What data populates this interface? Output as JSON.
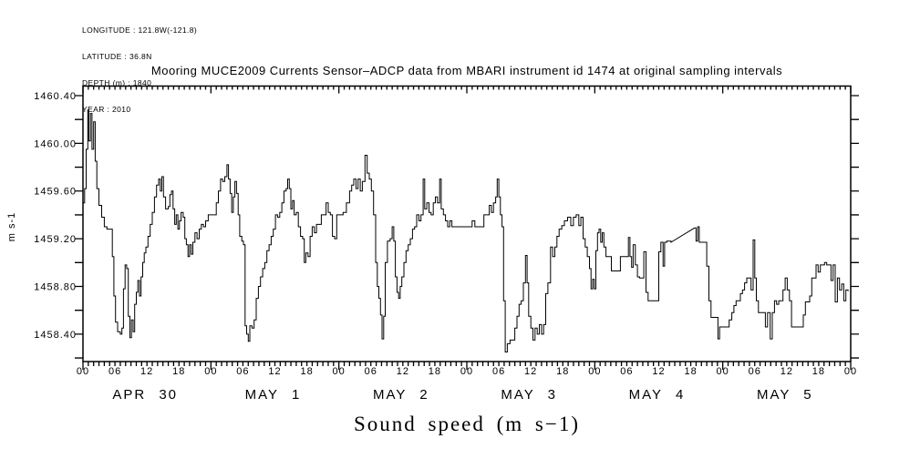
{
  "header_info": {
    "line1": "LONGITUDE : 121.8W(-121.8)",
    "line2": "LATITUDE : 36.8N",
    "line3": "DEPTH (m) : 1840",
    "line4": "YEAR : 2010"
  },
  "title": "Mooring MUCE2009 Currents Sensor–ADCP data from MBARI instrument id 1474 at original sampling intervals",
  "chart_data": {
    "type": "line",
    "title": "Mooring MUCE2009 Currents Sensor–ADCP data from MBARI instrument id 1474 at original sampling intervals",
    "xlabel": "Sound speed (m s−1)",
    "ylabel": "m s-1",
    "x_unit": "hours from 2010-04-30 00:00",
    "xlim_hours": [
      0,
      144
    ],
    "ylim": [
      1458.17,
      1460.48
    ],
    "y_tick_labels": [
      "1460.40",
      "1460.00",
      "1459.60",
      "1459.20",
      "1458.80",
      "1458.40"
    ],
    "y_tick_values": [
      1460.4,
      1460.0,
      1459.6,
      1459.2,
      1458.8,
      1458.4
    ],
    "y_minor_tick_step": 0.2,
    "x_hour_tick_labels": [
      "00",
      "06",
      "12",
      "18"
    ],
    "x_axis_end_label": "00",
    "x_day_labels": [
      "APR 30",
      "MAY 1",
      "MAY 2",
      "MAY 3",
      "MAY 4",
      "MAY 5"
    ],
    "grid": false,
    "legend": "none",
    "line_color": "#000000",
    "gap_hours_threshold": 2,
    "points": [
      [
        0,
        1459.5
      ],
      [
        0.3,
        1459.62
      ],
      [
        0.6,
        1459.95
      ],
      [
        0.9,
        1460.28
      ],
      [
        1.1,
        1460.02
      ],
      [
        1.4,
        1460.25
      ],
      [
        1.7,
        1459.95
      ],
      [
        2,
        1460.18
      ],
      [
        2.3,
        1459.85
      ],
      [
        2.6,
        1459.62
      ],
      [
        3,
        1459.48
      ],
      [
        3.5,
        1459.38
      ],
      [
        4,
        1459.3
      ],
      [
        4.5,
        1459.28
      ],
      [
        5.2,
        1459.28
      ],
      [
        5.5,
        1459.05
      ],
      [
        5.8,
        1458.72
      ],
      [
        6.1,
        1458.5
      ],
      [
        6.5,
        1458.42
      ],
      [
        7,
        1458.4
      ],
      [
        7.3,
        1458.45
      ],
      [
        7.6,
        1458.78
      ],
      [
        7.9,
        1458.98
      ],
      [
        8.2,
        1458.95
      ],
      [
        8.5,
        1458.55
      ],
      [
        8.8,
        1458.37
      ],
      [
        9.1,
        1458.52
      ],
      [
        9.4,
        1458.42
      ],
      [
        9.7,
        1458.65
      ],
      [
        10,
        1458.75
      ],
      [
        10.3,
        1458.85
      ],
      [
        10.6,
        1458.72
      ],
      [
        10.9,
        1458.88
      ],
      [
        11.2,
        1459
      ],
      [
        11.5,
        1459.08
      ],
      [
        11.8,
        1459.13
      ],
      [
        12.2,
        1459.22
      ],
      [
        12.6,
        1459.32
      ],
      [
        13,
        1459.42
      ],
      [
        13.4,
        1459.55
      ],
      [
        13.8,
        1459.65
      ],
      [
        14.2,
        1459.7
      ],
      [
        14.5,
        1459.6
      ],
      [
        14.8,
        1459.72
      ],
      [
        15.1,
        1459.55
      ],
      [
        15.5,
        1459.45
      ],
      [
        16,
        1459.47
      ],
      [
        16.3,
        1459.57
      ],
      [
        16.6,
        1459.6
      ],
      [
        16.9,
        1459.45
      ],
      [
        17.2,
        1459.32
      ],
      [
        17.5,
        1459.4
      ],
      [
        17.8,
        1459.28
      ],
      [
        18.1,
        1459.35
      ],
      [
        18.4,
        1459.42
      ],
      [
        18.8,
        1459.38
      ],
      [
        19.1,
        1459.2
      ],
      [
        19.4,
        1459.15
      ],
      [
        19.7,
        1459.05
      ],
      [
        20,
        1459.15
      ],
      [
        20.3,
        1459.07
      ],
      [
        20.6,
        1459.17
      ],
      [
        21,
        1459.25
      ],
      [
        21.4,
        1459.2
      ],
      [
        21.8,
        1459.28
      ],
      [
        22.2,
        1459.32
      ],
      [
        22.6,
        1459.3
      ],
      [
        23,
        1459.35
      ],
      [
        23.5,
        1459.4
      ],
      [
        24,
        1459.4
      ],
      [
        24.6,
        1459.4
      ],
      [
        25,
        1459.5
      ],
      [
        25.4,
        1459.6
      ],
      [
        25.8,
        1459.7
      ],
      [
        26.2,
        1459.68
      ],
      [
        26.6,
        1459.72
      ],
      [
        27,
        1459.82
      ],
      [
        27.3,
        1459.7
      ],
      [
        27.6,
        1459.58
      ],
      [
        27.9,
        1459.42
      ],
      [
        28.2,
        1459.55
      ],
      [
        28.5,
        1459.68
      ],
      [
        28.8,
        1459.58
      ],
      [
        29.1,
        1459.4
      ],
      [
        29.4,
        1459.22
      ],
      [
        29.8,
        1459.18
      ],
      [
        30.1,
        1459.15
      ],
      [
        30.4,
        1458.47
      ],
      [
        30.7,
        1458.4
      ],
      [
        31,
        1458.34
      ],
      [
        31.3,
        1458.47
      ],
      [
        31.7,
        1458.45
      ],
      [
        32.1,
        1458.52
      ],
      [
        32.5,
        1458.7
      ],
      [
        32.9,
        1458.8
      ],
      [
        33.3,
        1458.88
      ],
      [
        33.7,
        1458.95
      ],
      [
        34.1,
        1459
      ],
      [
        34.5,
        1459.1
      ],
      [
        34.9,
        1459.15
      ],
      [
        35.3,
        1459.22
      ],
      [
        35.7,
        1459.28
      ],
      [
        36.1,
        1459.4
      ],
      [
        36.5,
        1459.38
      ],
      [
        36.9,
        1459.42
      ],
      [
        37.3,
        1459.5
      ],
      [
        37.7,
        1459.6
      ],
      [
        38.1,
        1459.62
      ],
      [
        38.4,
        1459.7
      ],
      [
        38.7,
        1459.62
      ],
      [
        39,
        1459.45
      ],
      [
        39.3,
        1459.52
      ],
      [
        39.6,
        1459.4
      ],
      [
        40,
        1459.42
      ],
      [
        40.4,
        1459.3
      ],
      [
        40.8,
        1459.22
      ],
      [
        41.2,
        1459.2
      ],
      [
        41.5,
        1459
      ],
      [
        41.8,
        1459.08
      ],
      [
        42.2,
        1459.05
      ],
      [
        42.6,
        1459.22
      ],
      [
        43,
        1459.3
      ],
      [
        43.4,
        1459.25
      ],
      [
        43.8,
        1459.32
      ],
      [
        44.2,
        1459.32
      ],
      [
        44.7,
        1459.4
      ],
      [
        45.2,
        1459.4
      ],
      [
        45.6,
        1459.5
      ],
      [
        46,
        1459.42
      ],
      [
        46.4,
        1459.4
      ],
      [
        46.8,
        1459.22
      ],
      [
        47.2,
        1459.2
      ],
      [
        47.6,
        1459.4
      ],
      [
        48.2,
        1459.4
      ],
      [
        48.8,
        1459.42
      ],
      [
        49.4,
        1459.5
      ],
      [
        50,
        1459.6
      ],
      [
        50.4,
        1459.65
      ],
      [
        50.8,
        1459.7
      ],
      [
        51.2,
        1459.62
      ],
      [
        51.6,
        1459.7
      ],
      [
        52,
        1459.6
      ],
      [
        52.4,
        1459.68
      ],
      [
        52.9,
        1459.9
      ],
      [
        53.3,
        1459.75
      ],
      [
        53.7,
        1459.7
      ],
      [
        54.1,
        1459.6
      ],
      [
        54.5,
        1459.4
      ],
      [
        54.9,
        1459
      ],
      [
        55.2,
        1458.8
      ],
      [
        55.5,
        1458.7
      ],
      [
        55.8,
        1458.56
      ],
      [
        56.1,
        1458.36
      ],
      [
        56.4,
        1458.55
      ],
      [
        56.7,
        1459
      ],
      [
        57.1,
        1459.18
      ],
      [
        57.6,
        1459.2
      ],
      [
        58,
        1459.3
      ],
      [
        58.3,
        1459.18
      ],
      [
        58.6,
        1458.88
      ],
      [
        58.9,
        1458.75
      ],
      [
        59.2,
        1458.7
      ],
      [
        59.5,
        1458.8
      ],
      [
        59.8,
        1458.88
      ],
      [
        60.2,
        1459
      ],
      [
        60.6,
        1459.1
      ],
      [
        61,
        1459.15
      ],
      [
        61.4,
        1459.2
      ],
      [
        61.8,
        1459.28
      ],
      [
        62.2,
        1459.3
      ],
      [
        62.6,
        1459.4
      ],
      [
        63,
        1459.35
      ],
      [
        63.4,
        1459.4
      ],
      [
        63.8,
        1459.7
      ],
      [
        64.1,
        1459.45
      ],
      [
        64.5,
        1459.5
      ],
      [
        64.9,
        1459.42
      ],
      [
        65.3,
        1459.4
      ],
      [
        65.7,
        1459.5
      ],
      [
        66.1,
        1459.55
      ],
      [
        66.5,
        1459.5
      ],
      [
        66.9,
        1459.7
      ],
      [
        67.2,
        1459.45
      ],
      [
        67.6,
        1459.4
      ],
      [
        68,
        1459.35
      ],
      [
        68.4,
        1459.3
      ],
      [
        68.8,
        1459.35
      ],
      [
        69.2,
        1459.3
      ],
      [
        70,
        1459.3
      ],
      [
        71,
        1459.3
      ],
      [
        72,
        1459.3
      ],
      [
        73,
        1459.35
      ],
      [
        73.5,
        1459.3
      ],
      [
        74.5,
        1459.3
      ],
      [
        75.2,
        1459.4
      ],
      [
        75.8,
        1459.4
      ],
      [
        76.2,
        1459.48
      ],
      [
        76.6,
        1459.42
      ],
      [
        77,
        1459.5
      ],
      [
        77.4,
        1459.55
      ],
      [
        77.7,
        1459.7
      ],
      [
        78,
        1459.55
      ],
      [
        78.3,
        1459.4
      ],
      [
        78.6,
        1459.3
      ],
      [
        78.9,
        1458.68
      ],
      [
        79.2,
        1458.25
      ],
      [
        79.6,
        1458.32
      ],
      [
        80.1,
        1458.35
      ],
      [
        80.6,
        1458.35
      ],
      [
        81,
        1458.45
      ],
      [
        81.4,
        1458.55
      ],
      [
        81.8,
        1458.65
      ],
      [
        82.2,
        1458.68
      ],
      [
        82.6,
        1458.83
      ],
      [
        83,
        1459.06
      ],
      [
        83.3,
        1458.83
      ],
      [
        83.6,
        1458.55
      ],
      [
        84,
        1458.45
      ],
      [
        84.4,
        1458.35
      ],
      [
        84.8,
        1458.45
      ],
      [
        85.2,
        1458.4
      ],
      [
        85.6,
        1458.48
      ],
      [
        86,
        1458.4
      ],
      [
        86.4,
        1458.48
      ],
      [
        86.8,
        1458.74
      ],
      [
        87.2,
        1458.83
      ],
      [
        87.7,
        1459.13
      ],
      [
        88.1,
        1459.05
      ],
      [
        88.5,
        1459.13
      ],
      [
        88.9,
        1459.22
      ],
      [
        89.3,
        1459.28
      ],
      [
        89.8,
        1459.31
      ],
      [
        90.3,
        1459.35
      ],
      [
        90.9,
        1459.38
      ],
      [
        91.5,
        1459.31
      ],
      [
        92,
        1459.38
      ],
      [
        92.5,
        1459.4
      ],
      [
        93,
        1459.31
      ],
      [
        93.4,
        1459.38
      ],
      [
        93.8,
        1459.2
      ],
      [
        94.2,
        1459.13
      ],
      [
        94.6,
        1459.05
      ],
      [
        95,
        1458.95
      ],
      [
        95.3,
        1458.78
      ],
      [
        95.6,
        1458.86
      ],
      [
        95.9,
        1458.78
      ],
      [
        96.2,
        1459.1
      ],
      [
        96.5,
        1459.25
      ],
      [
        96.8,
        1459.28
      ],
      [
        97.1,
        1459.17
      ],
      [
        97.4,
        1459.25
      ],
      [
        97.7,
        1459.13
      ],
      [
        98.1,
        1459.05
      ],
      [
        98.6,
        1459.05
      ],
      [
        99.1,
        1458.93
      ],
      [
        99.7,
        1458.93
      ],
      [
        100.3,
        1458.93
      ],
      [
        100.8,
        1459.05
      ],
      [
        101.4,
        1459.05
      ],
      [
        102,
        1459.05
      ],
      [
        102.3,
        1459.21
      ],
      [
        102.6,
        1459.05
      ],
      [
        102.9,
        1458.96
      ],
      [
        103.2,
        1459.15
      ],
      [
        103.6,
        1458.98
      ],
      [
        104,
        1458.88
      ],
      [
        104.4,
        1458.87
      ],
      [
        104.8,
        1458.87
      ],
      [
        105.2,
        1459.09
      ],
      [
        105.6,
        1458.75
      ],
      [
        106,
        1458.68
      ],
      [
        106.5,
        1458.68
      ],
      [
        107,
        1458.68
      ],
      [
        107.5,
        1458.68
      ],
      [
        108,
        1459.09
      ],
      [
        108.4,
        1459.17
      ],
      [
        108.8,
        1458.97
      ],
      [
        109.1,
        1459.17
      ],
      [
        109.5,
        1459.18
      ],
      [
        110.3,
        1459.17
      ],
      [
        114.7,
        1459.29
      ],
      [
        115,
        1459.18
      ],
      [
        115.3,
        1459.3
      ],
      [
        115.6,
        1459.17
      ],
      [
        116.1,
        1459.17
      ],
      [
        116.6,
        1459.17
      ],
      [
        117,
        1458.97
      ],
      [
        117.4,
        1458.68
      ],
      [
        117.8,
        1458.54
      ],
      [
        118.3,
        1458.54
      ],
      [
        118.8,
        1458.54
      ],
      [
        119.1,
        1458.36
      ],
      [
        119.4,
        1458.46
      ],
      [
        120,
        1458.46
      ],
      [
        120.6,
        1458.46
      ],
      [
        121.2,
        1458.52
      ],
      [
        121.7,
        1458.58
      ],
      [
        122.1,
        1458.64
      ],
      [
        122.5,
        1458.68
      ],
      [
        122.9,
        1458.68
      ],
      [
        123.3,
        1458.74
      ],
      [
        123.7,
        1458.77
      ],
      [
        124.1,
        1458.83
      ],
      [
        124.5,
        1458.87
      ],
      [
        124.9,
        1458.87
      ],
      [
        125.3,
        1458.77
      ],
      [
        125.7,
        1459.19
      ],
      [
        126,
        1458.87
      ],
      [
        126.3,
        1458.68
      ],
      [
        126.7,
        1458.58
      ],
      [
        127.1,
        1458.58
      ],
      [
        127.6,
        1458.58
      ],
      [
        128,
        1458.46
      ],
      [
        128.4,
        1458.58
      ],
      [
        128.9,
        1458.36
      ],
      [
        129.3,
        1458.58
      ],
      [
        129.7,
        1458.68
      ],
      [
        130.1,
        1458.65
      ],
      [
        130.5,
        1458.68
      ],
      [
        130.9,
        1458.68
      ],
      [
        131.3,
        1458.77
      ],
      [
        131.7,
        1458.87
      ],
      [
        132.1,
        1458.77
      ],
      [
        132.5,
        1458.68
      ],
      [
        132.9,
        1458.46
      ],
      [
        133.4,
        1458.46
      ],
      [
        134,
        1458.46
      ],
      [
        134.6,
        1458.46
      ],
      [
        135.1,
        1458.56
      ],
      [
        135.5,
        1458.67
      ],
      [
        135.9,
        1458.67
      ],
      [
        136.3,
        1458.72
      ],
      [
        136.7,
        1458.87
      ],
      [
        137.1,
        1458.87
      ],
      [
        137.5,
        1458.98
      ],
      [
        137.9,
        1458.92
      ],
      [
        138.3,
        1458.98
      ],
      [
        138.7,
        1458.98
      ],
      [
        139.1,
        1459
      ],
      [
        139.5,
        1458.98
      ],
      [
        139.9,
        1458.98
      ],
      [
        140.3,
        1458.85
      ],
      [
        140.7,
        1458.98
      ],
      [
        141.1,
        1458.67
      ],
      [
        141.5,
        1458.87
      ],
      [
        141.9,
        1458.77
      ],
      [
        142.3,
        1458.82
      ],
      [
        142.7,
        1458.68
      ],
      [
        143.1,
        1458.77
      ],
      [
        143.5,
        1458.76
      ]
    ]
  }
}
